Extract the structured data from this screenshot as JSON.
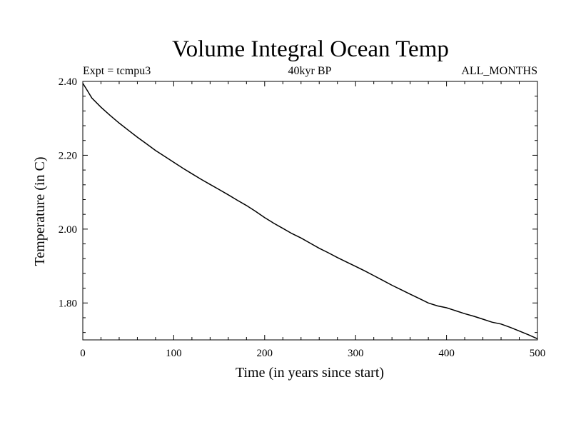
{
  "chart_data": {
    "type": "line",
    "title": "Volume Integral Ocean Temp",
    "subtitle_left": "Expt = tcmpu3",
    "subtitle_center": "40kyr BP",
    "subtitle_right": "ALL_MONTHS",
    "xlabel": "Time (in years since start)",
    "ylabel": "Temperature (in C)",
    "xlim": [
      0,
      500
    ],
    "ylim": [
      1.7,
      2.4
    ],
    "xticks": [
      0,
      100,
      200,
      300,
      400,
      500
    ],
    "xtick_labels": [
      "0",
      "100",
      "200",
      "300",
      "400",
      "500"
    ],
    "yticks": [
      1.8,
      2.0,
      2.2,
      2.4
    ],
    "ytick_labels": [
      "1.80",
      "2.00",
      "2.20",
      "2.40"
    ],
    "grid": false,
    "series": [
      {
        "x": [
          0,
          5,
          10,
          20,
          30,
          40,
          50,
          60,
          70,
          80,
          90,
          100,
          110,
          120,
          130,
          140,
          150,
          160,
          170,
          180,
          190,
          200,
          210,
          220,
          230,
          240,
          250,
          260,
          270,
          280,
          290,
          300,
          310,
          320,
          330,
          340,
          350,
          360,
          370,
          380,
          390,
          400,
          410,
          420,
          430,
          440,
          450,
          460,
          470,
          480,
          490,
          500
        ],
        "y": [
          2.395,
          2.375,
          2.355,
          2.33,
          2.308,
          2.287,
          2.268,
          2.249,
          2.231,
          2.213,
          2.197,
          2.181,
          2.165,
          2.15,
          2.135,
          2.121,
          2.107,
          2.093,
          2.078,
          2.064,
          2.048,
          2.031,
          2.016,
          2.002,
          1.988,
          1.976,
          1.962,
          1.948,
          1.936,
          1.923,
          1.911,
          1.899,
          1.887,
          1.874,
          1.861,
          1.848,
          1.836,
          1.824,
          1.812,
          1.8,
          1.792,
          1.787,
          1.779,
          1.771,
          1.764,
          1.756,
          1.748,
          1.743,
          1.734,
          1.724,
          1.714,
          1.703
        ]
      }
    ]
  }
}
